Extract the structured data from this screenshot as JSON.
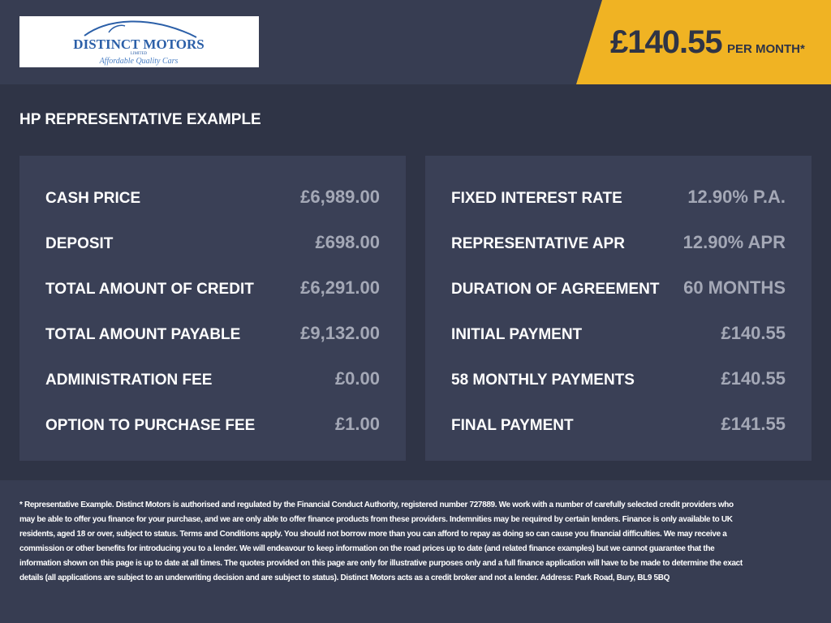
{
  "header": {
    "logo": {
      "name": "DISTINCT MOTORS",
      "sub": "LIMITED",
      "tagline": "Affordable Quality Cars"
    },
    "price": "£140.55",
    "per_month": "PER MONTH*",
    "accent_color": "#f0b323"
  },
  "title": "HP REPRESENTATIVE EXAMPLE",
  "left_panel": [
    {
      "label": "CASH PRICE",
      "value": "£6,989.00"
    },
    {
      "label": "DEPOSIT",
      "value": "£698.00"
    },
    {
      "label": "TOTAL AMOUNT OF CREDIT",
      "value": "£6,291.00"
    },
    {
      "label": "TOTAL AMOUNT PAYABLE",
      "value": "£9,132.00"
    },
    {
      "label": "ADMINISTRATION FEE",
      "value": "£0.00"
    },
    {
      "label": "OPTION TO PURCHASE FEE",
      "value": "£1.00"
    }
  ],
  "right_panel": [
    {
      "label": "FIXED INTEREST RATE",
      "value": "12.90% P.A."
    },
    {
      "label": "REPRESENTATIVE APR",
      "value": "12.90% APR"
    },
    {
      "label": "DURATION OF AGREEMENT",
      "value": "60 MONTHS"
    },
    {
      "label": "INITIAL PAYMENT",
      "value": "£140.55"
    },
    {
      "label": "58 MONTHLY PAYMENTS",
      "value": "£140.55"
    },
    {
      "label": "FINAL PAYMENT",
      "value": "£141.55"
    }
  ],
  "disclaimer": "* Representative Example. Distinct Motors is authorised and regulated by the Financial Conduct Authority, registered number 727889. We work with a number of carefully selected credit providers who may be able to offer you finance for your purchase, and we are only able to offer finance products from these providers. Indemnities may be required by certain lenders. Finance is only available to UK residents, aged 18 or over, subject to status. Terms and Conditions apply. You should not borrow more than you can afford to repay as doing so can cause you financial difficulties. We may receive a commission or other benefits for introducing you to a lender. We will endeavour to keep information on the road prices up to date (and related finance examples) but we cannot guarantee that the information shown on this page is up to date at all times. The quotes provided on this page are only for illustrative purposes only and a full finance application will have to be made to determine the exact details (all applications are subject to an underwriting decision and are subject to status). Distinct Motors acts as a credit broker and not a lender. Address: Park Road, Bury, BL9 5BQ"
}
